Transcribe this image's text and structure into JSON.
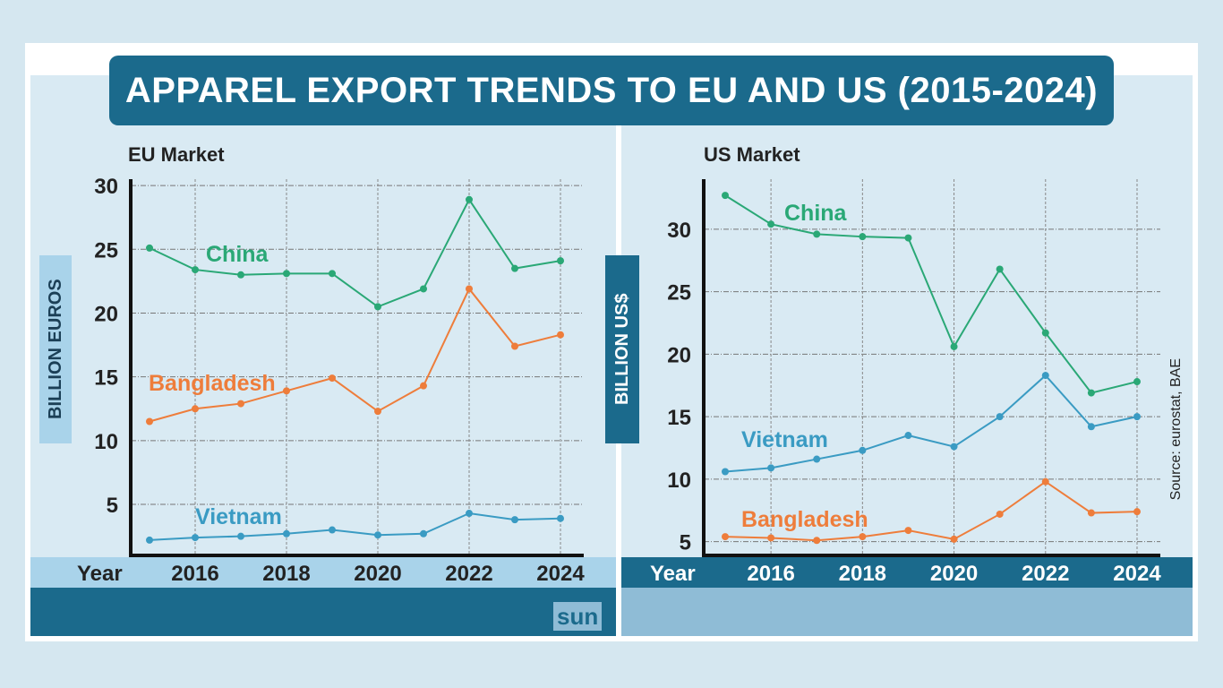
{
  "title": "APPAREL EXPORT TRENDS TO EU AND US  (2015-2024)",
  "source": "Source: eurostat, BAE",
  "logo": "sun",
  "colors": {
    "China": "#2aa876",
    "Bangladesh": "#ee7d3b",
    "Vietnam": "#3a9bc3",
    "banner": "#1b6a8c"
  },
  "chart_data": [
    {
      "type": "line",
      "title": "EU Market",
      "ylabel": "BILLION EUROS",
      "xlabel": "Year",
      "ylim": [
        1,
        30.5
      ],
      "yticks": [
        5,
        10,
        15,
        20,
        25,
        30
      ],
      "xticks": [
        2016,
        2018,
        2020,
        2022,
        2024
      ],
      "grid": true,
      "x": [
        2015,
        2016,
        2017,
        2018,
        2019,
        2020,
        2021,
        2022,
        2023,
        2024
      ],
      "series": [
        {
          "name": "China",
          "values": [
            25.1,
            23.4,
            23.0,
            23.1,
            23.1,
            20.5,
            21.9,
            28.9,
            23.5,
            24.1
          ]
        },
        {
          "name": "Bangladesh",
          "values": [
            11.5,
            12.5,
            12.9,
            13.9,
            14.9,
            12.3,
            14.3,
            21.9,
            17.4,
            18.3
          ]
        },
        {
          "name": "Vietnam",
          "values": [
            2.2,
            2.4,
            2.5,
            2.7,
            3.0,
            2.6,
            2.7,
            4.3,
            3.8,
            3.9
          ]
        }
      ]
    },
    {
      "type": "line",
      "title": "US Market",
      "ylabel": "BILLION US$",
      "xlabel": "Year",
      "ylim": [
        3.9,
        34
      ],
      "yticks": [
        5,
        10,
        15,
        20,
        25,
        30
      ],
      "xticks": [
        2016,
        2018,
        2020,
        2022,
        2024
      ],
      "grid": true,
      "x": [
        2015,
        2016,
        2017,
        2018,
        2019,
        2020,
        2021,
        2022,
        2023,
        2024
      ],
      "series": [
        {
          "name": "China",
          "values": [
            32.7,
            30.4,
            29.6,
            29.4,
            29.3,
            20.6,
            26.8,
            21.7,
            16.9,
            17.8
          ]
        },
        {
          "name": "Vietnam",
          "values": [
            10.6,
            10.9,
            11.6,
            12.3,
            13.5,
            12.6,
            15.0,
            18.3,
            14.2,
            15.0
          ]
        },
        {
          "name": "Bangladesh",
          "values": [
            5.4,
            5.3,
            5.1,
            5.4,
            5.9,
            5.2,
            7.2,
            9.8,
            7.3,
            7.4
          ]
        }
      ]
    }
  ]
}
